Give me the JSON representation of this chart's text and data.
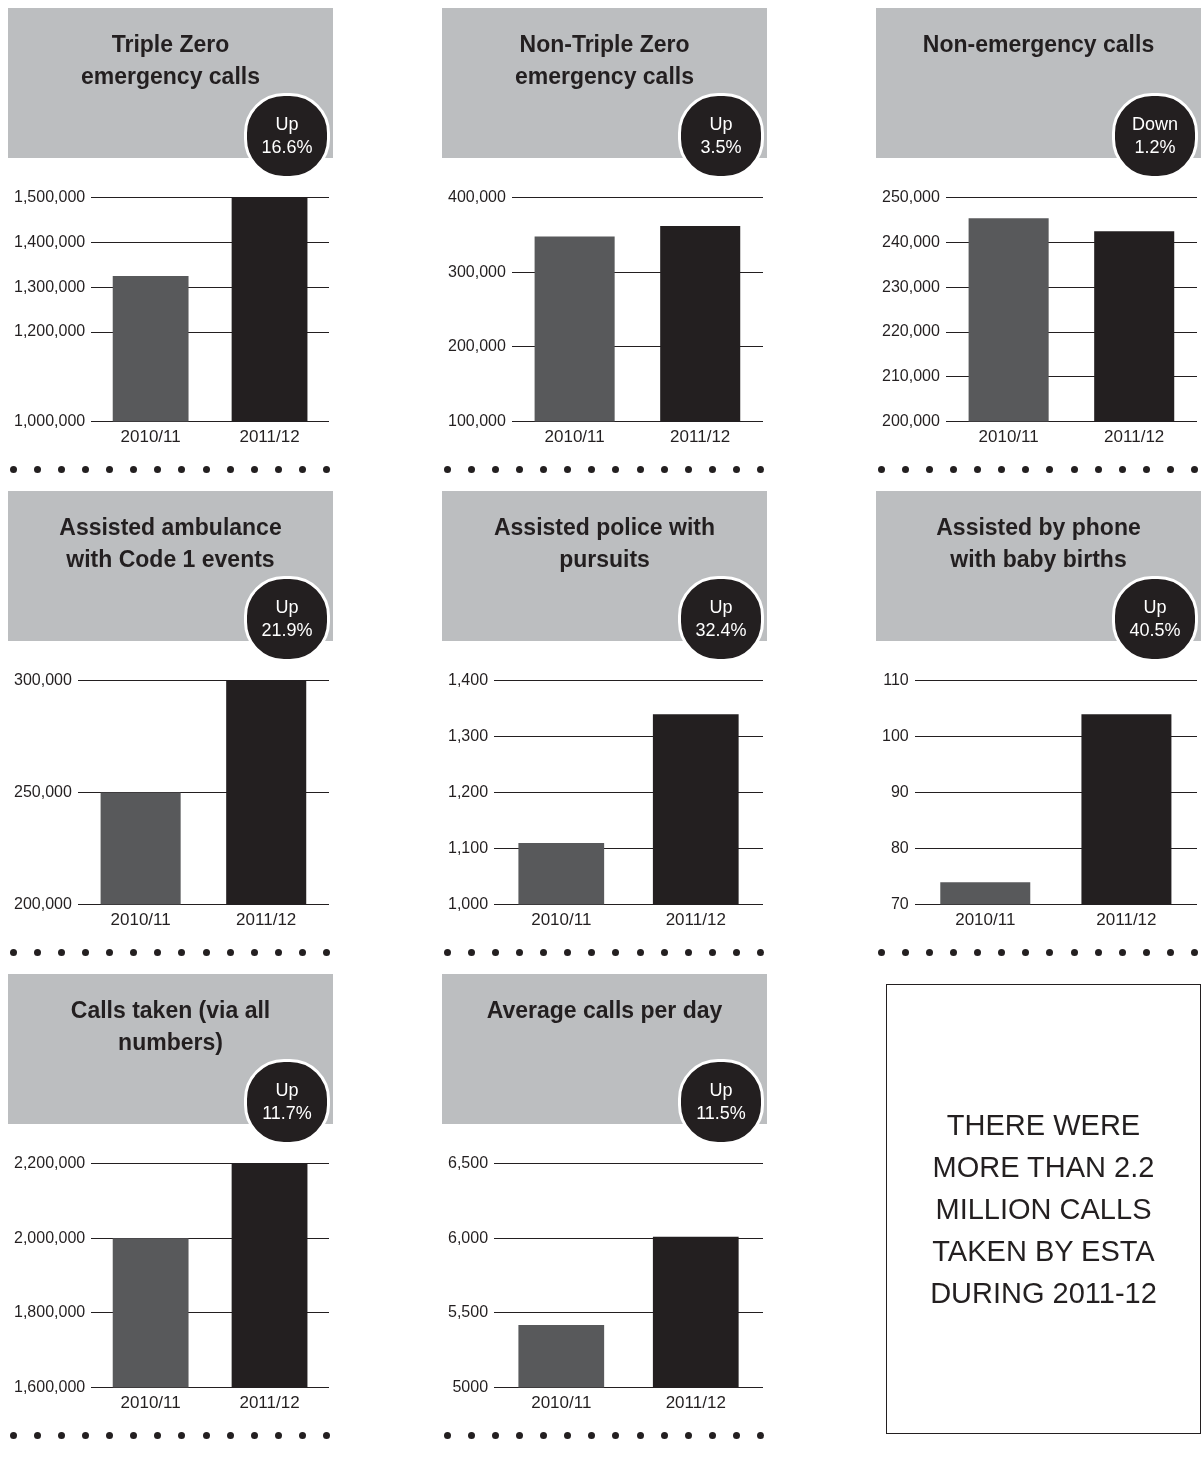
{
  "chart_data": [
    {
      "type": "bar",
      "title": "Triple Zero emergency calls",
      "categories": [
        "2010/11",
        "2011/12"
      ],
      "values": [
        1325000,
        1500000
      ],
      "colors": [
        "#58595b",
        "#231f20"
      ],
      "ylim": [
        1000000,
        1500000
      ],
      "yticks": [
        {
          "value": 1000000,
          "label": "1,000,000"
        },
        {
          "value": 1200000,
          "label": "1,200,000"
        },
        {
          "value": 1300000,
          "label": "1,300,000"
        },
        {
          "value": 1400000,
          "label": "1,400,000"
        },
        {
          "value": 1500000,
          "label": "1,500,000"
        }
      ],
      "grid": "y",
      "annotations": [
        "Up 16.6%"
      ]
    },
    {
      "type": "bar",
      "title": "Non-Triple Zero emergency calls",
      "categories": [
        "2010/11",
        "2011/12"
      ],
      "values": [
        348000,
        362000
      ],
      "colors": [
        "#58595b",
        "#231f20"
      ],
      "ylim": [
        100000,
        400000
      ],
      "yticks": [
        {
          "value": 100000,
          "label": "100,000"
        },
        {
          "value": 200000,
          "label": "200,000"
        },
        {
          "value": 300000,
          "label": "300,000"
        },
        {
          "value": 400000,
          "label": "400,000"
        }
      ],
      "grid": "y",
      "annotations": [
        "Up 3.5%"
      ]
    },
    {
      "type": "bar",
      "title": "Non-emergency calls",
      "categories": [
        "2010/11",
        "2011/12"
      ],
      "values": [
        245400,
        242500
      ],
      "colors": [
        "#58595b",
        "#231f20"
      ],
      "ylim": [
        200000,
        250000
      ],
      "yticks": [
        {
          "value": 200000,
          "label": "200,000"
        },
        {
          "value": 210000,
          "label": "210,000"
        },
        {
          "value": 220000,
          "label": "220,000"
        },
        {
          "value": 230000,
          "label": "230,000"
        },
        {
          "value": 240000,
          "label": "240,000"
        },
        {
          "value": 250000,
          "label": "250,000"
        }
      ],
      "grid": "y",
      "annotations": [
        "Down 1.2%"
      ]
    },
    {
      "type": "bar",
      "title": "Assisted ambulance with Code 1 events",
      "categories": [
        "2010/11",
        "2011/12"
      ],
      "values": [
        250000,
        300000
      ],
      "colors": [
        "#58595b",
        "#231f20"
      ],
      "ylim": [
        200000,
        300000
      ],
      "yticks": [
        {
          "value": 200000,
          "label": "200,000"
        },
        {
          "value": 250000,
          "label": "250,000"
        },
        {
          "value": 300000,
          "label": "300,000"
        }
      ],
      "grid": "y",
      "annotations": [
        "Up 21.9%"
      ]
    },
    {
      "type": "bar",
      "title": "Assisted police with pursuits",
      "categories": [
        "2010/11",
        "2011/12"
      ],
      "values": [
        1110,
        1340
      ],
      "colors": [
        "#58595b",
        "#231f20"
      ],
      "ylim": [
        1000,
        1400
      ],
      "yticks": [
        {
          "value": 1000,
          "label": "1,000"
        },
        {
          "value": 1100,
          "label": "1,100"
        },
        {
          "value": 1200,
          "label": "1,200"
        },
        {
          "value": 1300,
          "label": "1,300"
        },
        {
          "value": 1400,
          "label": "1,400"
        }
      ],
      "grid": "y",
      "annotations": [
        "Up 32.4%"
      ]
    },
    {
      "type": "bar",
      "title": "Assisted by phone with baby births",
      "categories": [
        "2010/11",
        "2011/12"
      ],
      "values": [
        74,
        104
      ],
      "colors": [
        "#58595b",
        "#231f20"
      ],
      "ylim": [
        70,
        110
      ],
      "yticks": [
        70,
        80,
        90,
        100,
        110
      ],
      "grid": "y",
      "annotations": [
        "Up 40.5%"
      ]
    },
    {
      "type": "bar",
      "title": "Calls taken (via all numbers)",
      "categories": [
        "2010/11",
        "2011/12"
      ],
      "values": [
        2000000,
        2200000
      ],
      "colors": [
        "#58595b",
        "#231f20"
      ],
      "ylim": [
        1600000,
        2200000
      ],
      "yticks": [
        {
          "value": 1600000,
          "label": "1,600,000"
        },
        {
          "value": 1800000,
          "label": "1,800,000"
        },
        {
          "value": 2000000,
          "label": "2,000,000"
        },
        {
          "value": 2200000,
          "label": "2,200,000"
        }
      ],
      "grid": "y",
      "annotations": [
        "Up 11.7%"
      ]
    },
    {
      "type": "bar",
      "title": "Average calls per day",
      "categories": [
        "2010/11",
        "2011/12"
      ],
      "values": [
        5420,
        6010
      ],
      "colors": [
        "#58595b",
        "#231f20"
      ],
      "ylim": [
        5000,
        6500
      ],
      "yticks": [
        5000,
        {
          "value": 5500,
          "label": "5,500"
        },
        {
          "value": 6000,
          "label": "6,000"
        },
        {
          "value": 6500,
          "label": "6,500"
        }
      ],
      "grid": "y",
      "annotations": [
        "Up 11.5%"
      ]
    },
    {
      "type": "other",
      "title": "THERE WERE MORE THAN 2.2 MILLION CALLS TAKEN BY ESTA DURING 2011-12"
    }
  ]
}
